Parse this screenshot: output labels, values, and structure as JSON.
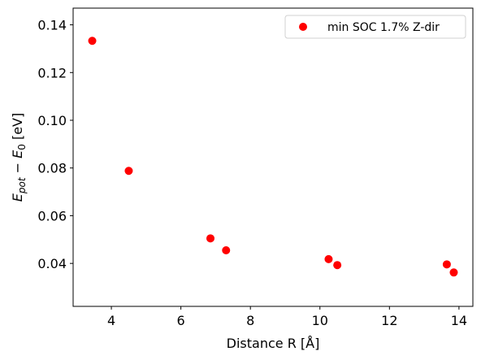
{
  "chart_data": {
    "type": "scatter",
    "title": "",
    "xlabel": "Distance R [Å]",
    "ylabel": "E_pot − E_0 [eV]",
    "ylabel_parts": {
      "e1": "E",
      "sub1": "pot",
      "op": " − ",
      "e2": "E",
      "sub2": "0",
      "unit": " [eV]"
    },
    "xlim": [
      2.9,
      14.4
    ],
    "ylim": [
      0.022,
      0.147
    ],
    "xticks": [
      4,
      6,
      8,
      10,
      12,
      14
    ],
    "yticks": [
      0.04,
      0.06,
      0.08,
      0.1,
      0.12,
      0.14
    ],
    "ytick_labels": [
      "0.04",
      "0.06",
      "0.08",
      "0.10",
      "0.12",
      "0.14"
    ],
    "grid": false,
    "legend_position": "top-right",
    "series": [
      {
        "name": "min SOC 1.7% Z-dir",
        "color": "#ff0000",
        "x": [
          3.45,
          4.5,
          6.85,
          7.3,
          10.25,
          10.5,
          13.65,
          13.85
        ],
        "y": [
          0.1333,
          0.0788,
          0.0505,
          0.0455,
          0.0418,
          0.0393,
          0.0396,
          0.0362
        ]
      }
    ]
  }
}
